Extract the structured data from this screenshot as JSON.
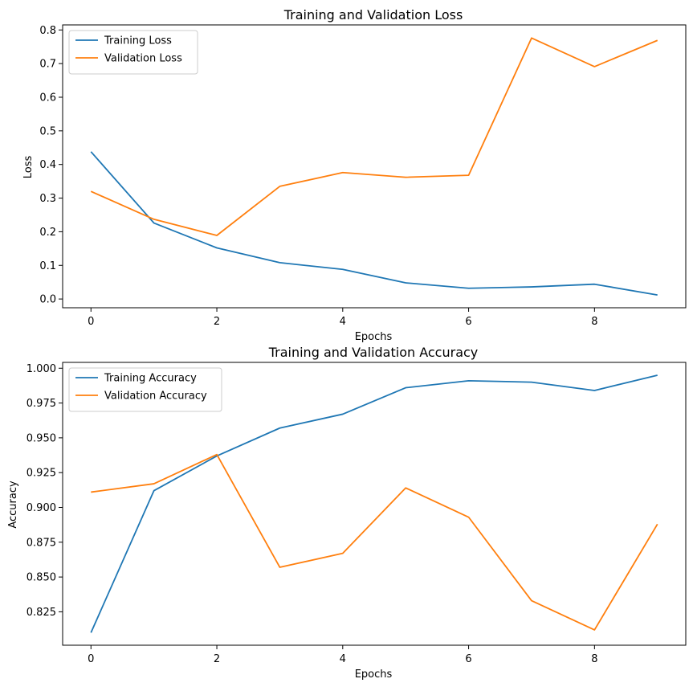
{
  "chart_data": [
    {
      "type": "line",
      "title": "Training and Validation Loss",
      "xlabel": "Epochs",
      "ylabel": "Loss",
      "x": [
        0,
        1,
        2,
        3,
        4,
        5,
        6,
        7,
        8,
        9
      ],
      "xlim": [
        -0.45,
        9.45
      ],
      "ylim": [
        -0.026,
        0.815
      ],
      "xticks": [
        0,
        2,
        4,
        6,
        8
      ],
      "yticks": [
        0.0,
        0.1,
        0.2,
        0.3,
        0.4,
        0.5,
        0.6,
        0.7,
        0.8
      ],
      "ytick_labels": [
        "0.0",
        "0.1",
        "0.2",
        "0.3",
        "0.4",
        "0.5",
        "0.6",
        "0.7",
        "0.8"
      ],
      "grid": false,
      "legend_position": "upper-left",
      "series": [
        {
          "name": "Training Loss",
          "color": "#1f77b4",
          "values": [
            0.438,
            0.226,
            0.152,
            0.108,
            0.088,
            0.048,
            0.032,
            0.036,
            0.044,
            0.012
          ]
        },
        {
          "name": "Validation Loss",
          "color": "#ff7f0e",
          "values": [
            0.32,
            0.237,
            0.189,
            0.335,
            0.376,
            0.362,
            0.368,
            0.776,
            0.691,
            0.769
          ]
        }
      ]
    },
    {
      "type": "line",
      "title": "Training and Validation Accuracy",
      "xlabel": "Epochs",
      "ylabel": "Accuracy",
      "x": [
        0,
        1,
        2,
        3,
        4,
        5,
        6,
        7,
        8,
        9
      ],
      "xlim": [
        -0.45,
        9.45
      ],
      "ylim": [
        0.801,
        1.0042
      ],
      "xticks": [
        0,
        2,
        4,
        6,
        8
      ],
      "yticks": [
        0.825,
        0.85,
        0.875,
        0.9,
        0.925,
        0.95,
        0.975,
        1.0
      ],
      "ytick_labels": [
        "0.825",
        "0.850",
        "0.875",
        "0.900",
        "0.925",
        "0.950",
        "0.975",
        "1.000"
      ],
      "grid": false,
      "legend_position": "upper-left",
      "series": [
        {
          "name": "Training Accuracy",
          "color": "#1f77b4",
          "values": [
            0.81,
            0.912,
            0.937,
            0.957,
            0.967,
            0.986,
            0.991,
            0.99,
            0.984,
            0.995
          ]
        },
        {
          "name": "Validation Accuracy",
          "color": "#ff7f0e",
          "values": [
            0.911,
            0.917,
            0.938,
            0.857,
            0.867,
            0.914,
            0.893,
            0.833,
            0.812,
            0.888
          ]
        }
      ]
    }
  ]
}
